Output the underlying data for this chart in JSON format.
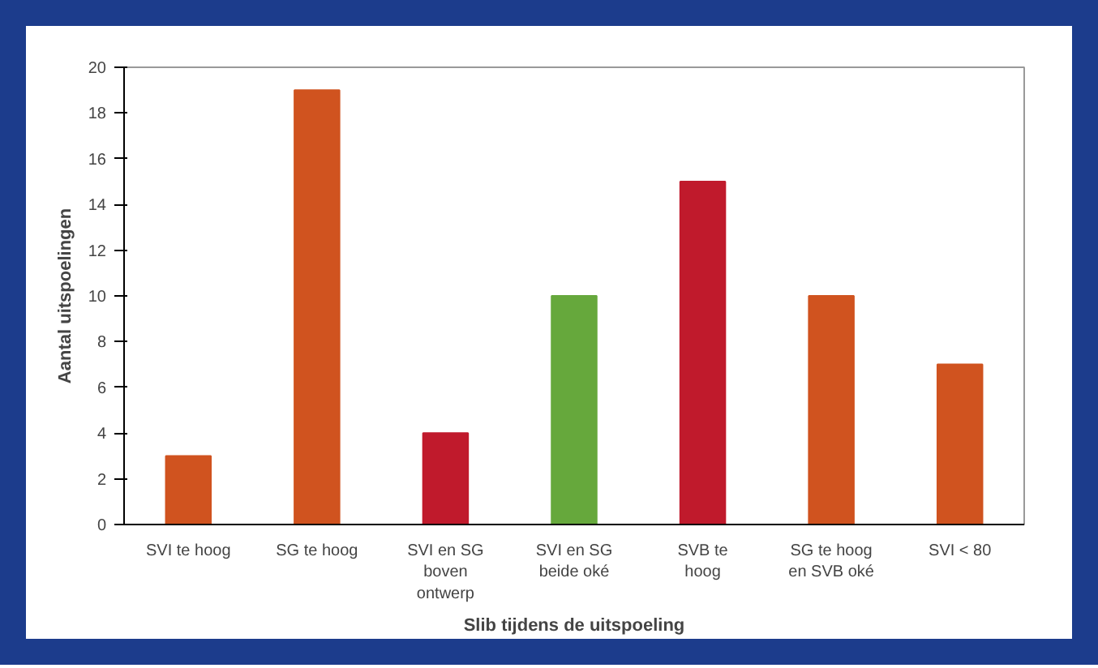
{
  "chart_data": {
    "type": "bar",
    "xlabel": "Slib tijdens de uitspoeling",
    "ylabel": "Aantal uitspoelingen",
    "categories": [
      "SVI te hoog",
      "SG te hoog",
      "SVI en SG\nboven\nontwerp",
      "SVI en SG\nbeide oké",
      "SVB te\nhoog",
      "SG te hoog\nen SVB oké",
      "SVI < 80"
    ],
    "values": [
      3,
      19,
      4,
      10,
      15,
      10,
      7
    ],
    "colors": [
      "#d0531f",
      "#d0531f",
      "#c01a2c",
      "#66a83c",
      "#c01a2c",
      "#d0531f",
      "#d0531f"
    ],
    "ylim": [
      0,
      20
    ],
    "yticks": [
      0,
      2,
      4,
      6,
      8,
      10,
      12,
      14,
      16,
      18,
      20
    ],
    "grid": false
  }
}
